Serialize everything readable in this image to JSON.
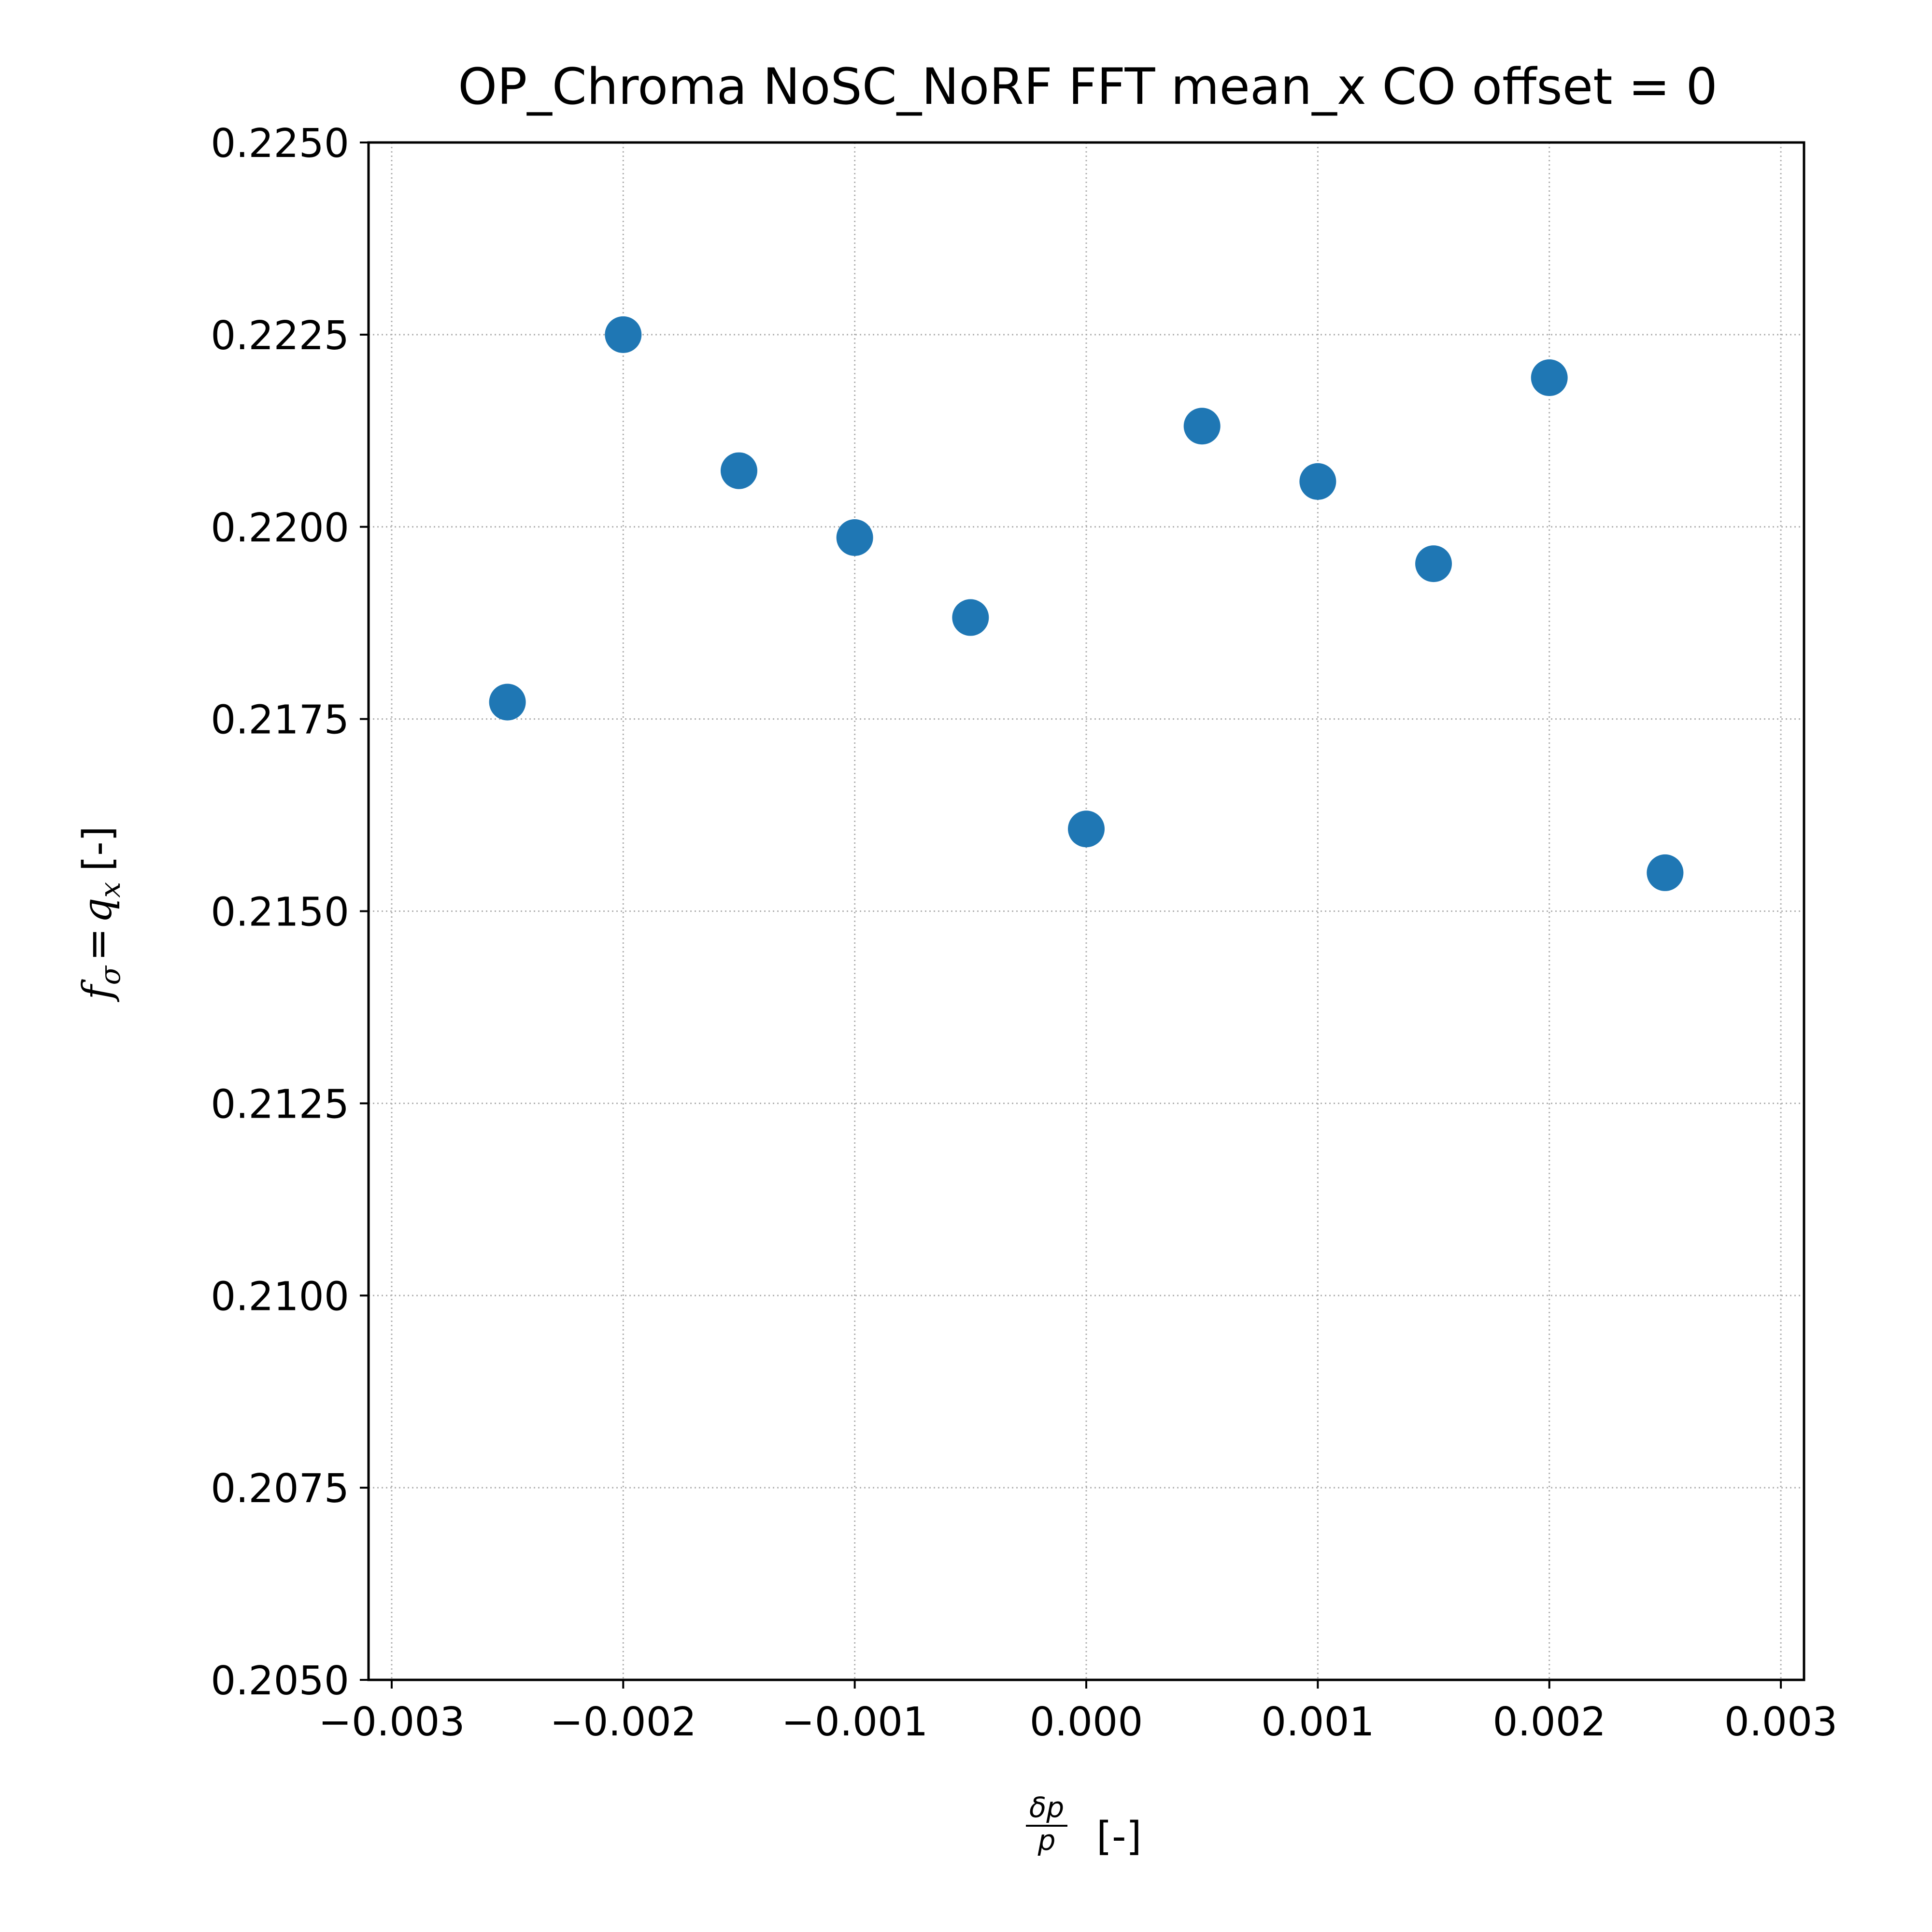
{
  "chart_data": {
    "type": "scatter",
    "title": "OP_Chroma NoSC_NoRF FFT mean_x  CO offset = 0",
    "xlabel": {
      "numerator": "δp",
      "denominator": "p",
      "unit": "[-]"
    },
    "ylabel": {
      "f": "f",
      "sub_sigma": "σ",
      "equals": "=",
      "q": "q",
      "sub_x": "x",
      "unit": "[-]"
    },
    "xlim": [
      -0.0031,
      0.0031
    ],
    "ylim": [
      0.205,
      0.225
    ],
    "xticks": [
      -0.003,
      -0.002,
      -0.001,
      0.0,
      0.001,
      0.002,
      0.003
    ],
    "xtick_labels": [
      "−0.003",
      "−0.002",
      "−0.001",
      "0.000",
      "0.001",
      "0.002",
      "0.003"
    ],
    "yticks": [
      0.205,
      0.2075,
      0.21,
      0.2125,
      0.215,
      0.2175,
      0.22,
      0.2225,
      0.225
    ],
    "ytick_labels": [
      "0.2050",
      "0.2075",
      "0.2100",
      "0.2125",
      "0.2150",
      "0.2175",
      "0.2200",
      "0.2225",
      "0.2250"
    ],
    "grid": true,
    "marker_color": "#1f77b4",
    "points": [
      {
        "x": -0.0025,
        "y": 0.21772
      },
      {
        "x": -0.002,
        "y": 0.2225
      },
      {
        "x": -0.0015,
        "y": 0.22073
      },
      {
        "x": -0.001,
        "y": 0.21986
      },
      {
        "x": -0.0005,
        "y": 0.21882
      },
      {
        "x": 0.0,
        "y": 0.21607
      },
      {
        "x": 0.0005,
        "y": 0.22131
      },
      {
        "x": 0.001,
        "y": 0.22059
      },
      {
        "x": 0.0015,
        "y": 0.21952
      },
      {
        "x": 0.002,
        "y": 0.22194
      },
      {
        "x": 0.0025,
        "y": 0.2155
      }
    ]
  }
}
